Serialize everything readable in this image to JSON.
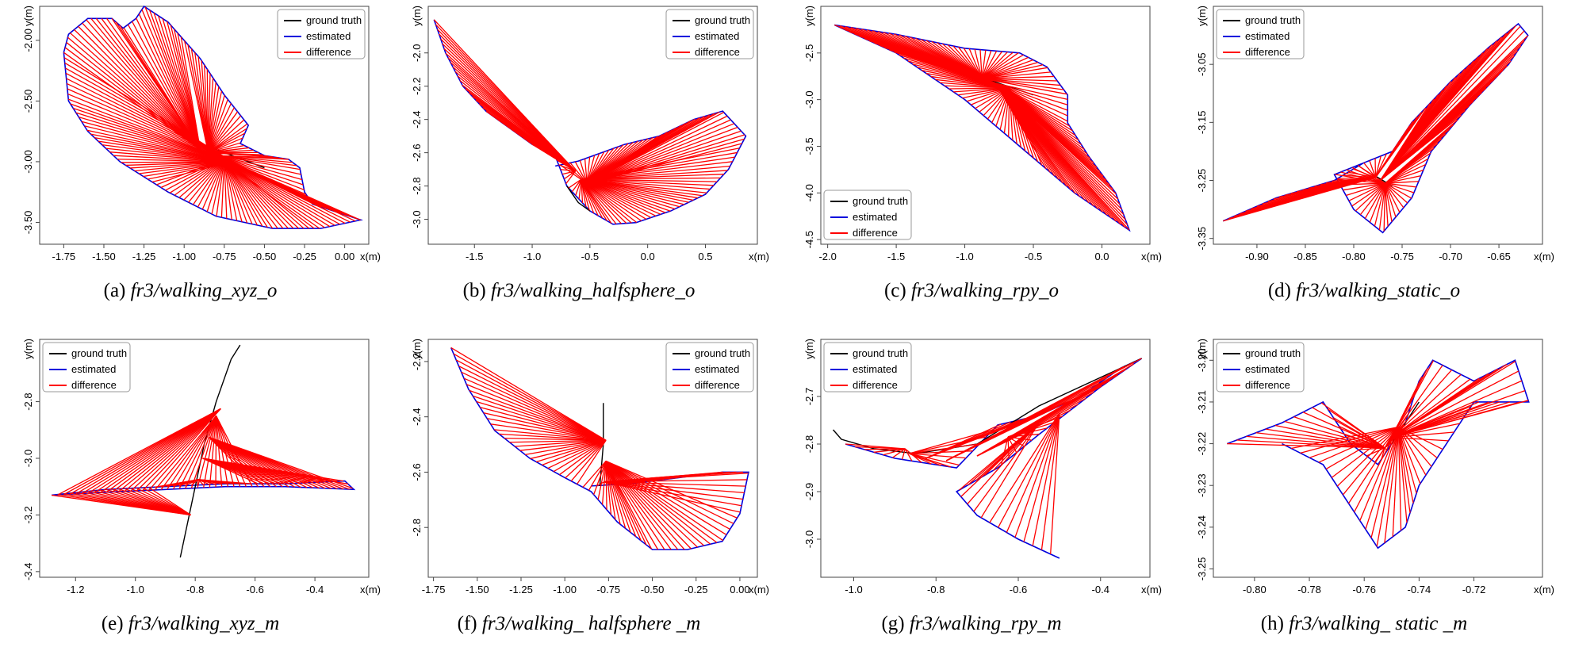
{
  "legend_labels": [
    "ground truth",
    "estimated",
    "difference"
  ],
  "colors": {
    "ground_truth": "#000000",
    "estimated": "#0000dd",
    "difference": "#ff0000"
  },
  "chart_data": [
    {
      "type": "line",
      "caption_prefix": "(a)",
      "caption_name": "fr3/walking_xyz_o",
      "xlabel": "x(m)",
      "ylabel": "y(m)",
      "xlim": [
        -1.9,
        0.15
      ],
      "ylim": [
        -3.68,
        -1.72
      ],
      "xticks": [
        -1.75,
        -1.5,
        -1.25,
        -1.0,
        -0.75,
        -0.5,
        -0.25,
        0.0
      ],
      "xtick_labels": [
        "-1.75",
        "-1.50",
        "-1.25",
        "-1.00",
        "-0.75",
        "-0.50",
        "-0.25",
        "0.00"
      ],
      "yticks": [
        -2.0,
        -2.5,
        -3.0,
        -3.5
      ],
      "ytick_labels": [
        "-2.00",
        "-2.50",
        "-3.00",
        "-3.50"
      ],
      "legend_loc": "top-right",
      "estimated_path": [
        [
          -1.75,
          -2.1
        ],
        [
          -1.72,
          -1.95
        ],
        [
          -1.6,
          -1.82
        ],
        [
          -1.45,
          -1.82
        ],
        [
          -1.38,
          -1.9
        ],
        [
          -1.3,
          -1.82
        ],
        [
          -1.25,
          -1.72
        ],
        [
          -1.1,
          -1.85
        ],
        [
          -0.9,
          -2.15
        ],
        [
          -0.75,
          -2.45
        ],
        [
          -0.6,
          -2.7
        ],
        [
          -0.65,
          -2.85
        ],
        [
          -0.5,
          -2.95
        ],
        [
          -0.35,
          -2.98
        ],
        [
          -0.28,
          -3.05
        ],
        [
          -0.25,
          -3.25
        ],
        [
          -0.2,
          -3.35
        ],
        [
          0.1,
          -3.48
        ],
        [
          -0.15,
          -3.55
        ],
        [
          -0.45,
          -3.55
        ],
        [
          -0.8,
          -3.45
        ],
        [
          -1.1,
          -3.25
        ],
        [
          -1.4,
          -3.0
        ],
        [
          -1.6,
          -2.75
        ],
        [
          -1.72,
          -2.5
        ],
        [
          -1.75,
          -2.1
        ]
      ],
      "ground_truth_path": [
        [
          -0.9,
          -2.85
        ],
        [
          -0.8,
          -2.9
        ],
        [
          -0.7,
          -2.95
        ],
        [
          -0.6,
          -3.0
        ],
        [
          -0.5,
          -3.05
        ]
      ],
      "difference_centroid": [
        -0.9,
        -2.95
      ],
      "difference_count": 160
    },
    {
      "type": "line",
      "caption_prefix": "(b)",
      "caption_name": "fr3/walking_halfsphere_o",
      "xlabel": "x(m)",
      "ylabel": "y(m)",
      "xlim": [
        -1.9,
        0.95
      ],
      "ylim": [
        -3.15,
        -1.72
      ],
      "xticks": [
        -1.5,
        -1.0,
        -0.5,
        0.0,
        0.5
      ],
      "xtick_labels": [
        "-1.5",
        "-1.0",
        "-0.5",
        "0.0",
        "0.5"
      ],
      "yticks": [
        -2.0,
        -2.2,
        -2.4,
        -2.6,
        -2.8,
        -3.0
      ],
      "ytick_labels": [
        "-2.0",
        "-2.2",
        "-2.4",
        "-2.6",
        "-2.8",
        "-3.0"
      ],
      "legend_loc": "top-right",
      "estimated_path": [
        [
          -1.85,
          -1.8
        ],
        [
          -1.75,
          -2.0
        ],
        [
          -1.6,
          -2.2
        ],
        [
          -1.4,
          -2.35
        ],
        [
          -1.2,
          -2.45
        ],
        [
          -1.0,
          -2.55
        ],
        [
          -0.8,
          -2.62
        ],
        [
          -0.7,
          -2.8
        ],
        [
          -0.5,
          -2.95
        ],
        [
          -0.3,
          -3.03
        ],
        [
          -0.1,
          -3.02
        ],
        [
          0.2,
          -2.95
        ],
        [
          0.5,
          -2.85
        ],
        [
          0.7,
          -2.7
        ],
        [
          0.85,
          -2.5
        ],
        [
          0.65,
          -2.35
        ],
        [
          0.4,
          -2.4
        ],
        [
          0.1,
          -2.5
        ],
        [
          -0.2,
          -2.55
        ],
        [
          -0.4,
          -2.6
        ],
        [
          -0.6,
          -2.65
        ],
        [
          -0.8,
          -2.68
        ]
      ],
      "ground_truth_path": [
        [
          -0.7,
          -2.8
        ],
        [
          -0.6,
          -2.9
        ],
        [
          -0.5,
          -2.95
        ]
      ],
      "difference_centroid": [
        -0.55,
        -2.62
      ],
      "difference_count": 130
    },
    {
      "type": "line",
      "caption_prefix": "(c)",
      "caption_name": "fr3/walking_rpy_o",
      "xlabel": "x(m)",
      "ylabel": "y(m)",
      "xlim": [
        -2.05,
        0.35
      ],
      "ylim": [
        -4.55,
        -2.0
      ],
      "xticks": [
        -2.0,
        -1.5,
        -1.0,
        -0.5,
        0.0
      ],
      "xtick_labels": [
        "-2.0",
        "-1.5",
        "-1.0",
        "-0.5",
        "0.0"
      ],
      "yticks": [
        -2.5,
        -3.0,
        -3.5,
        -4.0,
        -4.5
      ],
      "ytick_labels": [
        "-2.5",
        "-3.0",
        "-3.5",
        "-4.0",
        "-4.5"
      ],
      "legend_loc": "bottom-left",
      "estimated_path": [
        [
          -1.95,
          -2.2
        ],
        [
          -1.5,
          -2.3
        ],
        [
          -1.0,
          -2.45
        ],
        [
          -0.6,
          -2.5
        ],
        [
          -0.4,
          -2.65
        ],
        [
          -0.25,
          -2.95
        ],
        [
          -0.25,
          -3.25
        ],
        [
          -0.1,
          -3.6
        ],
        [
          0.1,
          -4.0
        ],
        [
          0.2,
          -4.4
        ],
        [
          -0.2,
          -4.0
        ],
        [
          -0.6,
          -3.5
        ],
        [
          -1.0,
          -3.0
        ],
        [
          -1.5,
          -2.5
        ],
        [
          -1.95,
          -2.2
        ]
      ],
      "ground_truth_path": [
        [
          -0.9,
          -2.75
        ],
        [
          -0.7,
          -2.85
        ],
        [
          -0.5,
          -2.95
        ]
      ],
      "difference_centroid": [
        -0.85,
        -2.8
      ],
      "difference_count": 140
    },
    {
      "type": "line",
      "caption_prefix": "(d)",
      "caption_name": "fr3/walking_static_o",
      "xlabel": "x(m)",
      "ylabel": "y(m)",
      "xlim": [
        -0.945,
        -0.605
      ],
      "ylim": [
        -3.36,
        -2.95
      ],
      "xticks": [
        -0.9,
        -0.85,
        -0.8,
        -0.75,
        -0.7,
        -0.65
      ],
      "xtick_labels": [
        "-0.90",
        "-0.85",
        "-0.80",
        "-0.75",
        "-0.70",
        "-0.65"
      ],
      "yticks": [
        -3.05,
        -3.15,
        -3.25,
        -3.35
      ],
      "ytick_labels": [
        "-3.05",
        "-3.15",
        "-3.25",
        "-3.35"
      ],
      "legend_loc": "top-left",
      "estimated_path": [
        [
          -0.935,
          -3.32
        ],
        [
          -0.88,
          -3.28
        ],
        [
          -0.82,
          -3.25
        ],
        [
          -0.79,
          -3.22
        ],
        [
          -0.76,
          -3.2
        ],
        [
          -0.74,
          -3.15
        ],
        [
          -0.7,
          -3.08
        ],
        [
          -0.66,
          -3.02
        ],
        [
          -0.63,
          -2.98
        ],
        [
          -0.62,
          -3.0
        ],
        [
          -0.64,
          -3.05
        ],
        [
          -0.68,
          -3.12
        ],
        [
          -0.72,
          -3.2
        ],
        [
          -0.74,
          -3.28
        ],
        [
          -0.77,
          -3.34
        ],
        [
          -0.8,
          -3.3
        ],
        [
          -0.82,
          -3.24
        ],
        [
          -0.79,
          -3.22
        ]
      ],
      "ground_truth_path": [
        [
          -0.78,
          -3.24
        ],
        [
          -0.77,
          -3.25
        ],
        [
          -0.76,
          -3.26
        ]
      ],
      "difference_centroid": [
        -0.775,
        -3.25
      ],
      "difference_count": 120
    },
    {
      "type": "line",
      "caption_prefix": "(e)",
      "caption_name": "fr3/walking_xyz_m",
      "xlabel": "x(m)",
      "ylabel": "y(m)",
      "xlim": [
        -1.32,
        -0.22
      ],
      "ylim": [
        -3.42,
        -2.58
      ],
      "xticks": [
        -1.2,
        -1.0,
        -0.8,
        -0.6,
        -0.4
      ],
      "xtick_labels": [
        "-1.2",
        "-1.0",
        "-0.8",
        "-0.6",
        "-0.4"
      ],
      "yticks": [
        -2.8,
        -3.0,
        -3.2,
        -3.4
      ],
      "ytick_labels": [
        "-2.8",
        "-3.0",
        "-3.2",
        "-3.4"
      ],
      "legend_loc": "top-left",
      "estimated_path": [
        [
          -1.28,
          -3.13
        ],
        [
          -1.1,
          -3.11
        ],
        [
          -0.9,
          -3.1
        ],
        [
          -0.7,
          -3.09
        ],
        [
          -0.5,
          -3.09
        ],
        [
          -0.3,
          -3.08
        ],
        [
          -0.27,
          -3.11
        ],
        [
          -0.5,
          -3.1
        ],
        [
          -0.7,
          -3.1
        ],
        [
          -0.9,
          -3.11
        ],
        [
          -1.1,
          -3.12
        ],
        [
          -1.28,
          -3.13
        ]
      ],
      "ground_truth_path": [
        [
          -0.85,
          -3.35
        ],
        [
          -0.8,
          -3.1
        ],
        [
          -0.77,
          -2.95
        ],
        [
          -0.73,
          -2.8
        ],
        [
          -0.68,
          -2.65
        ],
        [
          -0.65,
          -2.6
        ]
      ],
      "difference_centroid": [
        -0.78,
        -3.05
      ],
      "difference_count": 100
    },
    {
      "type": "line",
      "caption_prefix": "(f)",
      "caption_name": "fr3/walking_ halfsphere _m",
      "xlabel": "x(m)",
      "ylabel": "y(m)",
      "xlim": [
        -1.78,
        0.1
      ],
      "ylim": [
        -2.98,
        -2.12
      ],
      "xticks": [
        -1.75,
        -1.5,
        -1.25,
        -1.0,
        -0.75,
        -0.5,
        -0.25,
        0.0
      ],
      "xtick_labels": [
        "-1.75",
        "-1.50",
        "-1.25",
        "-1.00",
        "-0.75",
        "-0.50",
        "-0.25",
        "0.00"
      ],
      "yticks": [
        -2.2,
        -2.4,
        -2.6,
        -2.8
      ],
      "ytick_labels": [
        "-2.2",
        "-2.4",
        "-2.6",
        "-2.8"
      ],
      "legend_loc": "top-right",
      "estimated_path": [
        [
          -1.65,
          -2.15
        ],
        [
          -1.55,
          -2.3
        ],
        [
          -1.4,
          -2.45
        ],
        [
          -1.2,
          -2.55
        ],
        [
          -1.0,
          -2.62
        ],
        [
          -0.85,
          -2.67
        ],
        [
          -0.7,
          -2.78
        ],
        [
          -0.5,
          -2.88
        ],
        [
          -0.3,
          -2.88
        ],
        [
          -0.1,
          -2.85
        ],
        [
          0.0,
          -2.75
        ],
        [
          0.05,
          -2.6
        ],
        [
          -0.1,
          -2.6
        ],
        [
          -0.35,
          -2.62
        ],
        [
          -0.6,
          -2.64
        ],
        [
          -0.85,
          -2.65
        ]
      ],
      "ground_truth_path": [
        [
          -0.78,
          -2.35
        ],
        [
          -0.78,
          -2.5
        ],
        [
          -0.8,
          -2.65
        ]
      ],
      "difference_centroid": [
        -0.75,
        -2.62
      ],
      "difference_count": 90
    },
    {
      "type": "line",
      "caption_prefix": "(g)",
      "caption_name": "fr3/walking_rpy_m",
      "xlabel": "x(m)",
      "ylabel": "y(m)",
      "xlim": [
        -1.08,
        -0.28
      ],
      "ylim": [
        -3.08,
        -2.58
      ],
      "xticks": [
        -1.0,
        -0.8,
        -0.6,
        -0.4
      ],
      "xtick_labels": [
        "-1.0",
        "-0.8",
        "-0.6",
        "-0.4"
      ],
      "yticks": [
        -2.7,
        -2.8,
        -2.9,
        -3.0
      ],
      "ytick_labels": [
        "-2.7",
        "-2.8",
        "-2.9",
        "-3.0"
      ],
      "legend_loc": "top-left",
      "estimated_path": [
        [
          -1.02,
          -2.8
        ],
        [
          -0.9,
          -2.83
        ],
        [
          -0.75,
          -2.85
        ],
        [
          -0.65,
          -2.76
        ],
        [
          -0.55,
          -2.74
        ],
        [
          -0.45,
          -2.7
        ],
        [
          -0.35,
          -2.64
        ],
        [
          -0.3,
          -2.62
        ],
        [
          -0.4,
          -2.68
        ],
        [
          -0.55,
          -2.78
        ],
        [
          -0.65,
          -2.85
        ],
        [
          -0.75,
          -2.9
        ],
        [
          -0.7,
          -2.95
        ],
        [
          -0.6,
          -3.0
        ],
        [
          -0.5,
          -3.04
        ]
      ],
      "ground_truth_path": [
        [
          -1.05,
          -2.77
        ],
        [
          -1.03,
          -2.79
        ],
        [
          -0.95,
          -2.81
        ],
        [
          -0.85,
          -2.82
        ],
        [
          -0.7,
          -2.8
        ],
        [
          -0.55,
          -2.72
        ],
        [
          -0.4,
          -2.66
        ],
        [
          -0.3,
          -2.62
        ]
      ],
      "difference_centroid": [
        -0.7,
        -2.85
      ],
      "difference_count": 70
    },
    {
      "type": "line",
      "caption_prefix": "(h)",
      "caption_name": "fr3/walking_ static _m",
      "xlabel": "x(m)",
      "ylabel": "y(m)",
      "xlim": [
        -0.815,
        -0.695
      ],
      "ylim": [
        -3.252,
        -3.195
      ],
      "xticks": [
        -0.8,
        -0.78,
        -0.76,
        -0.74,
        -0.72
      ],
      "xtick_labels": [
        "-0.80",
        "-0.78",
        "-0.76",
        "-0.74",
        "-0.72"
      ],
      "yticks": [
        -3.2,
        -3.21,
        -3.22,
        -3.23,
        -3.24,
        -3.25
      ],
      "ytick_labels": [
        "-3.20",
        "-3.21",
        "-3.22",
        "-3.23",
        "-3.24",
        "-3.25"
      ],
      "legend_loc": "top-left",
      "estimated_path": [
        [
          -0.81,
          -3.22
        ],
        [
          -0.79,
          -3.215
        ],
        [
          -0.775,
          -3.21
        ],
        [
          -0.765,
          -3.22
        ],
        [
          -0.755,
          -3.225
        ],
        [
          -0.745,
          -3.215
        ],
        [
          -0.74,
          -3.205
        ],
        [
          -0.735,
          -3.2
        ],
        [
          -0.72,
          -3.205
        ],
        [
          -0.705,
          -3.2
        ],
        [
          -0.7,
          -3.21
        ],
        [
          -0.72,
          -3.21
        ],
        [
          -0.74,
          -3.23
        ],
        [
          -0.745,
          -3.24
        ],
        [
          -0.755,
          -3.245
        ],
        [
          -0.765,
          -3.235
        ],
        [
          -0.775,
          -3.225
        ],
        [
          -0.79,
          -3.22
        ]
      ],
      "ground_truth_path": [
        [
          -0.75,
          -3.22
        ],
        [
          -0.745,
          -3.215
        ],
        [
          -0.74,
          -3.21
        ]
      ],
      "difference_centroid": [
        -0.755,
        -3.222
      ],
      "difference_count": 80
    }
  ]
}
